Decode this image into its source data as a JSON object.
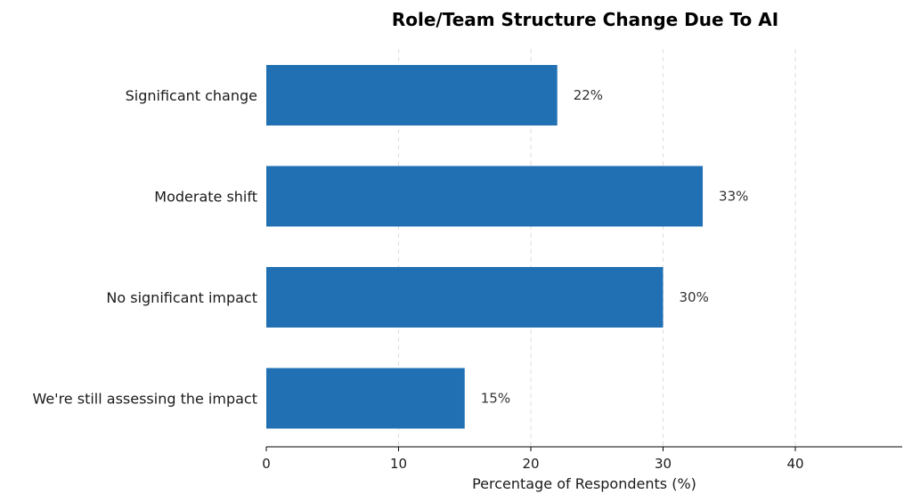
{
  "chart_data": {
    "type": "bar",
    "orientation": "horizontal",
    "title": "Role/Team Structure Change Due To AI",
    "xlabel": "Percentage of Respondents (%)",
    "ylabel": "",
    "categories": [
      "Significant change",
      "Moderate shift",
      "No significant impact",
      "We're still assessing the impact"
    ],
    "values": [
      22,
      33,
      30,
      15
    ],
    "value_labels": [
      "22%",
      "33%",
      "30%",
      "15%"
    ],
    "xlim": [
      0,
      48
    ],
    "xticks": [
      0,
      10,
      20,
      30,
      40
    ],
    "xtick_labels": [
      "0",
      "10",
      "20",
      "30",
      "40"
    ],
    "grid": "vertical dashed",
    "bar_color": "#2170b3"
  }
}
